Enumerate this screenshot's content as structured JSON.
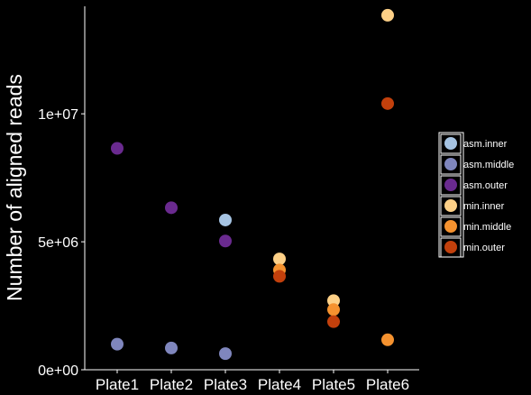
{
  "chart_data": {
    "type": "scatter",
    "title": "",
    "xlabel": "",
    "ylabel": "Number of aligned reads",
    "categories": [
      "Plate1",
      "Plate2",
      "Plate3",
      "Plate4",
      "Plate5",
      "Plate6"
    ],
    "ylim": [
      0,
      14200000
    ],
    "y_ticks": [
      0,
      5000000,
      10000000
    ],
    "y_tick_labels": [
      "0e+00",
      "5e+06",
      "1e+07"
    ],
    "grid": false,
    "legend_position": "right",
    "series": [
      {
        "name": "asm.inner",
        "color": "#a6c4e3",
        "values": [
          null,
          null,
          5850000,
          null,
          null,
          null
        ]
      },
      {
        "name": "asm.middle",
        "color": "#7f86bd",
        "values": [
          1000000,
          850000,
          630000,
          null,
          null,
          null
        ]
      },
      {
        "name": "asm.outer",
        "color": "#6a2a8f",
        "values": [
          8650000,
          6330000,
          5030000,
          null,
          null,
          null
        ]
      },
      {
        "name": "min.inner",
        "color": "#fdd087",
        "values": [
          null,
          null,
          null,
          4330000,
          2700000,
          13850000
        ]
      },
      {
        "name": "min.middle",
        "color": "#f5922f",
        "values": [
          null,
          null,
          null,
          3900000,
          2350000,
          1170000
        ]
      },
      {
        "name": "min.outer",
        "color": "#c2400c",
        "values": [
          null,
          null,
          null,
          3650000,
          1880000,
          10400000
        ]
      }
    ]
  }
}
